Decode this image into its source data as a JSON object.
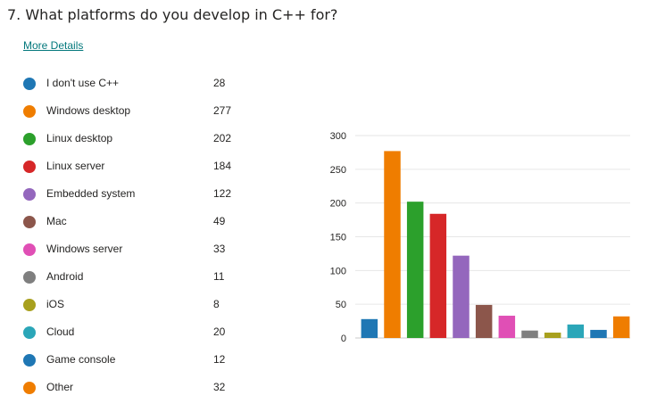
{
  "question": "7. What platforms do you develop in C++ for?",
  "more_details": "More Details",
  "chart_data": {
    "type": "bar",
    "categories": [
      "I don't use C++",
      "Windows desktop",
      "Linux desktop",
      "Linux server",
      "Embedded system",
      "Mac",
      "Windows server",
      "Android",
      "iOS",
      "Cloud",
      "Game console",
      "Other"
    ],
    "values": [
      28,
      277,
      202,
      184,
      122,
      49,
      33,
      11,
      8,
      20,
      12,
      32
    ],
    "colors": [
      "#1f77b4",
      "#ef7d00",
      "#2ca02c",
      "#d62728",
      "#9467bd",
      "#8c564b",
      "#e04fb5",
      "#7f7f7f",
      "#a8a01e",
      "#2ba6b8",
      "#1f77b4",
      "#ef7d00"
    ],
    "ylim": [
      0,
      300
    ],
    "yticks": [
      0,
      50,
      100,
      150,
      200,
      250,
      300
    ],
    "grid": true,
    "legend_placement": "left"
  }
}
